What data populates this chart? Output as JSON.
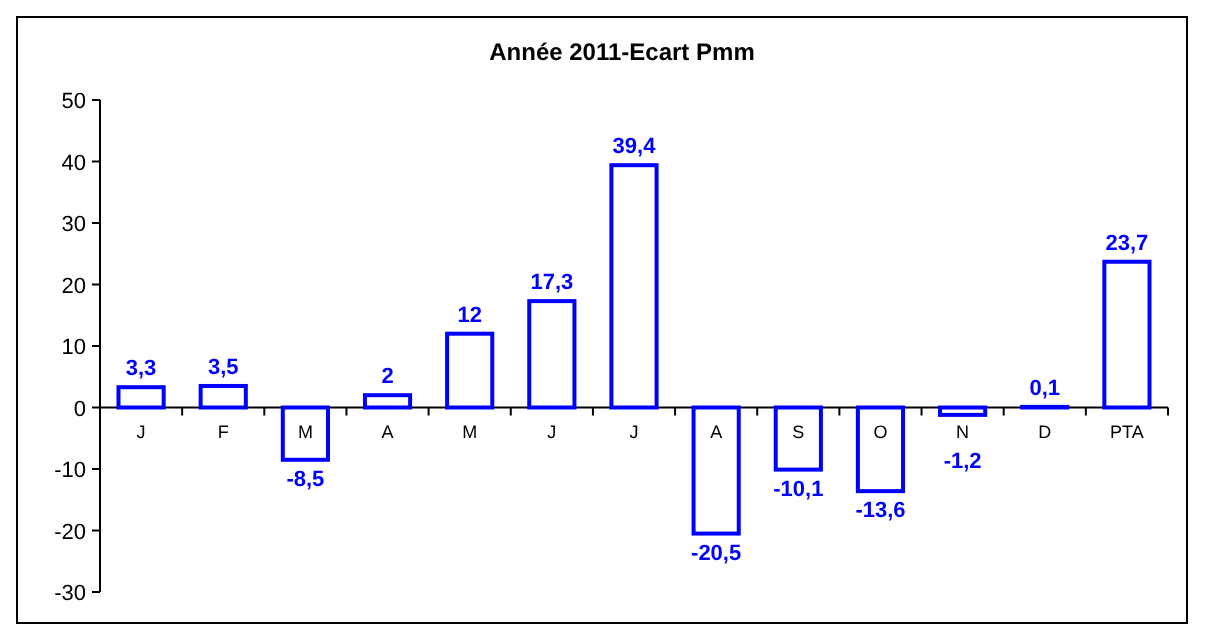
{
  "chart_data": {
    "type": "bar",
    "title": "Année 2011-Ecart Pmm",
    "categories": [
      "J",
      "F",
      "M",
      "A",
      "M",
      "J",
      "J",
      "A",
      "S",
      "O",
      "N",
      "D",
      "PTA"
    ],
    "values": [
      3.3,
      3.5,
      -8.5,
      2,
      12,
      17.3,
      39.4,
      -20.5,
      -10.1,
      -13.6,
      -1.2,
      0.1,
      23.7
    ],
    "value_labels": [
      "3,3",
      "3,5",
      "-8,5",
      "2",
      "12",
      "17,3",
      "39,4",
      "-20,5",
      "-10,1",
      "-13,6",
      "-1,2",
      "0,1",
      "23,7"
    ],
    "color": "#0000ff",
    "ylim": [
      -30,
      50
    ],
    "yticks": [
      -30,
      -20,
      -10,
      0,
      10,
      20,
      30,
      40,
      50
    ],
    "grid": false
  }
}
